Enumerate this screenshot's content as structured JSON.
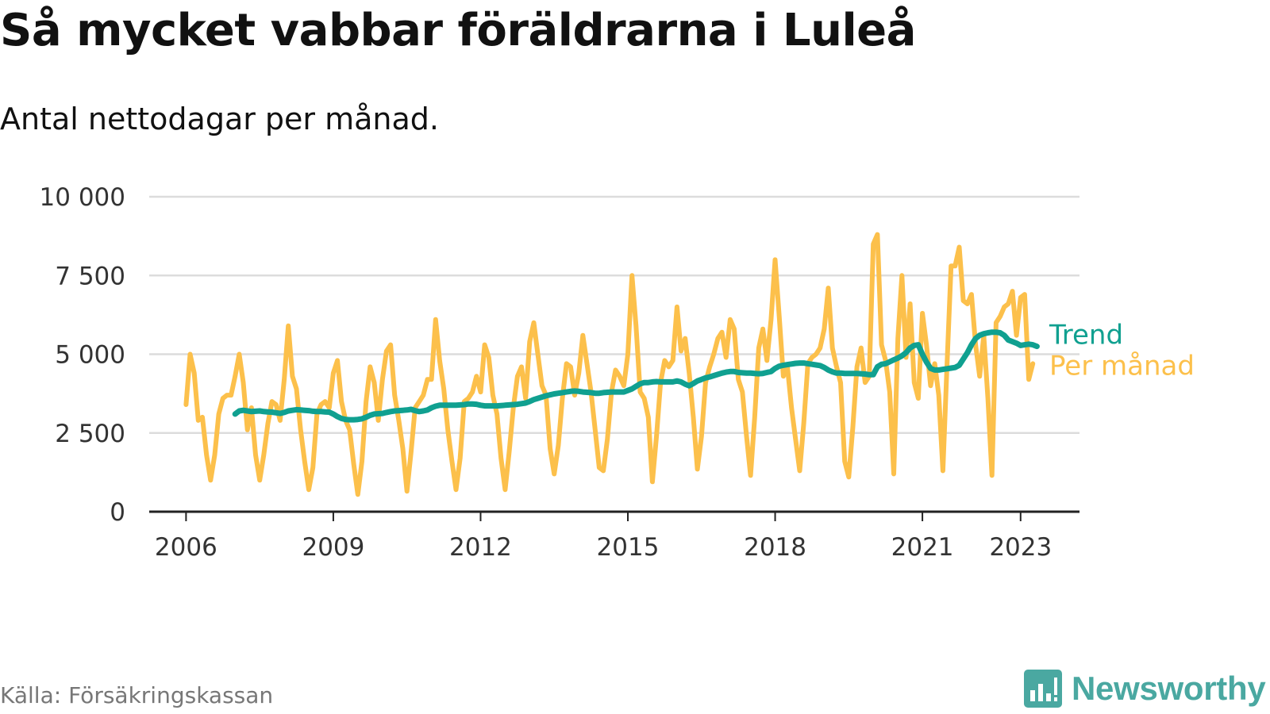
{
  "title": "Så mycket vabbar föräldrarna i Luleå",
  "subtitle": "Antal nettodagar per månad.",
  "source": "Källa: Försäkringskassan",
  "brand": "Newsworthy",
  "colors": {
    "per_manad": "#fcc04b",
    "trend": "#10a090",
    "grid": "#dcdcdc",
    "axis": "#222222",
    "brand": "#4aa8a1"
  },
  "chart_data": {
    "type": "line",
    "title": "Så mycket vabbar föräldrarna i Luleå",
    "subtitle": "Antal nettodagar per månad.",
    "ylim": [
      0,
      10000
    ],
    "y_ticks": [
      0,
      2500,
      5000,
      7500,
      10000
    ],
    "y_tick_labels": [
      "0",
      "2 500",
      "5 000",
      "7 500",
      "10 000"
    ],
    "x_ticks": [
      2006,
      2009,
      2012,
      2015,
      2018,
      2021,
      2023
    ],
    "x_tick_labels": [
      "2006",
      "2009",
      "2012",
      "2015",
      "2018",
      "2021",
      "2023"
    ],
    "xlim": [
      2005.25,
      2024.2
    ],
    "grid": true,
    "legend": "inline labels at line ends (right)",
    "series": [
      {
        "name": "Per månad",
        "color": "#fcc04b",
        "x_start": "2006-01",
        "frequency": "monthly",
        "values": [
          3400,
          5000,
          4400,
          2900,
          3000,
          1800,
          1000,
          1800,
          3100,
          3600,
          3700,
          3700,
          4300,
          5000,
          4100,
          2600,
          3300,
          1800,
          1000,
          1800,
          2800,
          3500,
          3400,
          2900,
          4200,
          5900,
          4300,
          3900,
          2600,
          1600,
          700,
          1400,
          3100,
          3400,
          3500,
          3300,
          4400,
          4800,
          3500,
          2900,
          2600,
          1500,
          550,
          1600,
          3500,
          4600,
          4100,
          2900,
          4200,
          5100,
          5300,
          3700,
          2900,
          2000,
          650,
          1900,
          3300,
          3500,
          3700,
          4200,
          4200,
          6100,
          4800,
          3900,
          2600,
          1600,
          700,
          1700,
          3500,
          3600,
          3800,
          4300,
          3800,
          5300,
          4900,
          3700,
          3100,
          1700,
          700,
          1900,
          3300,
          4300,
          4600,
          3600,
          5400,
          6000,
          5000,
          4000,
          3700,
          2000,
          1200,
          2100,
          3600,
          4700,
          4600,
          3700,
          4400,
          5600,
          4700,
          3800,
          2600,
          1400,
          1300,
          2300,
          3800,
          4500,
          4300,
          4000,
          5000,
          7500,
          5900,
          3800,
          3600,
          3000,
          950,
          2400,
          4100,
          4800,
          4600,
          4800,
          6500,
          5100,
          5500,
          4400,
          3000,
          1350,
          2400,
          4100,
          4600,
          5000,
          5500,
          5700,
          4900,
          6100,
          5800,
          4200,
          3800,
          2400,
          1150,
          3000,
          5200,
          5800,
          4800,
          6100,
          8000,
          6200,
          4300,
          4600,
          3300,
          2300,
          1300,
          2800,
          4700,
          4900,
          5000,
          5200,
          5800,
          7100,
          5200,
          4600,
          4100,
          1600,
          1100,
          2700,
          4600,
          5200,
          4100,
          4300,
          8500,
          8800,
          5300,
          4800,
          3800,
          1200,
          5500,
          7500,
          4900,
          6600,
          4100,
          3600,
          6300,
          5300,
          4000,
          4700,
          3700,
          1300,
          4600,
          7800,
          7800,
          8400,
          6700,
          6600,
          6900,
          5300,
          4300,
          5600,
          3600,
          1150,
          6000,
          6200,
          6500,
          6600,
          7000,
          5600,
          6800,
          6900,
          4200,
          4700
        ]
      },
      {
        "name": "Trend",
        "color": "#10a090",
        "x_start": "2007-01",
        "frequency": "monthly",
        "values": [
          3100,
          3200,
          3220,
          3200,
          3180,
          3190,
          3200,
          3180,
          3170,
          3160,
          3140,
          3120,
          3150,
          3200,
          3220,
          3240,
          3230,
          3220,
          3210,
          3190,
          3180,
          3180,
          3170,
          3160,
          3100,
          3020,
          2960,
          2930,
          2920,
          2920,
          2930,
          2950,
          3000,
          3060,
          3100,
          3110,
          3120,
          3150,
          3180,
          3200,
          3210,
          3220,
          3230,
          3250,
          3210,
          3180,
          3200,
          3230,
          3300,
          3350,
          3380,
          3380,
          3380,
          3380,
          3380,
          3390,
          3400,
          3420,
          3420,
          3410,
          3380,
          3360,
          3360,
          3360,
          3360,
          3370,
          3380,
          3390,
          3400,
          3410,
          3430,
          3450,
          3500,
          3560,
          3600,
          3640,
          3680,
          3710,
          3740,
          3760,
          3780,
          3800,
          3820,
          3830,
          3820,
          3800,
          3790,
          3780,
          3760,
          3760,
          3780,
          3790,
          3800,
          3800,
          3800,
          3800,
          3850,
          3900,
          3980,
          4060,
          4100,
          4100,
          4120,
          4130,
          4120,
          4120,
          4120,
          4120,
          4150,
          4120,
          4050,
          4000,
          4070,
          4150,
          4200,
          4250,
          4280,
          4320,
          4360,
          4400,
          4430,
          4450,
          4450,
          4420,
          4410,
          4400,
          4400,
          4390,
          4380,
          4390,
          4420,
          4450,
          4550,
          4620,
          4650,
          4670,
          4690,
          4710,
          4720,
          4720,
          4700,
          4680,
          4660,
          4640,
          4580,
          4500,
          4440,
          4400,
          4400,
          4390,
          4390,
          4390,
          4390,
          4380,
          4370,
          4350,
          4350,
          4600,
          4680,
          4700,
          4760,
          4820,
          4880,
          4950,
          5050,
          5200,
          5280,
          5300,
          5000,
          4750,
          4550,
          4500,
          4500,
          4520,
          4540,
          4560,
          4580,
          4650,
          4850,
          5050,
          5300,
          5500,
          5600,
          5650,
          5680,
          5700,
          5700,
          5680,
          5600,
          5450,
          5400,
          5350,
          5280,
          5300,
          5320,
          5300,
          5250
        ]
      }
    ]
  }
}
